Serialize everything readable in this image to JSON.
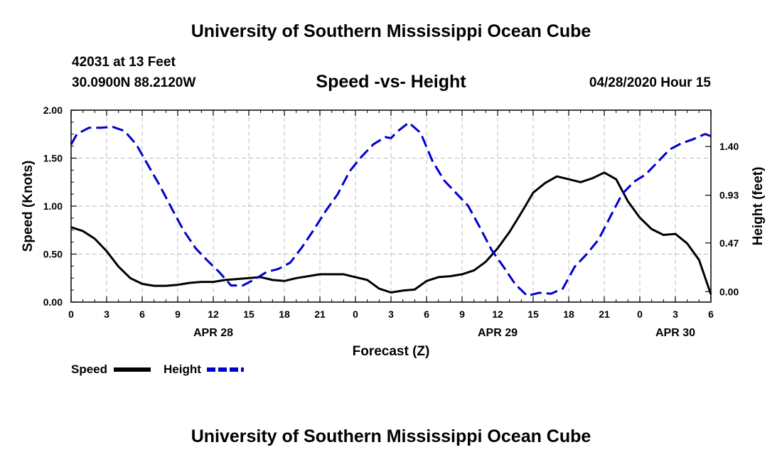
{
  "header": {
    "top_title": "University of Southern Mississippi Ocean Cube",
    "station_id": "42031 at 13 Feet",
    "coordinates": "30.0900N 88.2120W",
    "chart_title": "Speed -vs- Height",
    "date_label": "04/28/2020 Hour 15",
    "bottom_title": "University of Southern Mississippi Ocean Cube"
  },
  "chart_data": {
    "type": "line",
    "title": "Speed -vs- Height",
    "xlabel": "Forecast (Z)",
    "ylabel": "Speed (Knots)",
    "y2label": "Height (feet)",
    "x_range": [
      0,
      54
    ],
    "x_tick_values": [
      0,
      3,
      6,
      9,
      12,
      15,
      18,
      21,
      24,
      27,
      30,
      33,
      36,
      39,
      42,
      45,
      48,
      51,
      54
    ],
    "x_tick_labels": [
      "0",
      "3",
      "6",
      "9",
      "12",
      "15",
      "18",
      "21",
      "0",
      "3",
      "6",
      "9",
      "12",
      "15",
      "18",
      "21",
      "0",
      "3",
      "6"
    ],
    "date_labels": [
      {
        "x": 12,
        "label": "APR 28"
      },
      {
        "x": 36,
        "label": "APR 29"
      },
      {
        "x": 51,
        "label": "APR 30"
      }
    ],
    "ylim": [
      0,
      2.0
    ],
    "y_ticks": [
      "0.00",
      "0.50",
      "1.00",
      "1.50",
      "2.00"
    ],
    "y_tick_values": [
      0,
      0.5,
      1.0,
      1.5,
      2.0
    ],
    "y2lim": [
      -0.1,
      1.75
    ],
    "y2_ticks": [
      "0.00",
      "0.47",
      "0.93",
      "1.40"
    ],
    "y2_tick_values": [
      0,
      0.47,
      0.93,
      1.4
    ],
    "grid": true,
    "legend": [
      {
        "name": "Speed",
        "color": "#000000",
        "style": "solid"
      },
      {
        "name": "Height",
        "color": "#0000cc",
        "style": "dashed"
      }
    ],
    "series": [
      {
        "name": "Speed",
        "axis": "left",
        "color": "#000000",
        "x": [
          0,
          1,
          2,
          3,
          4,
          5,
          6,
          7,
          8,
          9,
          10,
          11,
          12,
          13,
          14,
          15,
          16,
          17,
          18,
          19,
          20,
          21,
          22,
          23,
          24,
          25,
          26,
          27,
          28,
          29,
          30,
          31,
          32,
          33,
          34,
          35,
          36,
          37,
          38,
          39,
          40,
          41,
          42,
          43,
          44,
          45,
          46,
          47,
          48,
          49,
          50,
          51,
          52,
          53,
          54
        ],
        "values": [
          0.78,
          0.74,
          0.66,
          0.53,
          0.37,
          0.25,
          0.19,
          0.17,
          0.17,
          0.18,
          0.2,
          0.21,
          0.21,
          0.23,
          0.24,
          0.25,
          0.26,
          0.23,
          0.22,
          0.25,
          0.27,
          0.29,
          0.29,
          0.29,
          0.26,
          0.23,
          0.14,
          0.1,
          0.12,
          0.13,
          0.22,
          0.26,
          0.27,
          0.29,
          0.33,
          0.42,
          0.56,
          0.73,
          0.93,
          1.14,
          1.24,
          1.31,
          1.28,
          1.25,
          1.29,
          1.35,
          1.28,
          1.05,
          0.88,
          0.76,
          0.7,
          0.71,
          0.61,
          0.44,
          0.08
        ]
      },
      {
        "name": "Height",
        "axis": "right",
        "color": "#0000cc",
        "x": [
          0,
          0.5,
          1.5,
          2.5,
          3.5,
          4.5,
          5.5,
          6.5,
          7.5,
          8.5,
          9.5,
          10.5,
          11.5,
          12.5,
          13.5,
          14.5,
          15.5,
          16.5,
          17.5,
          18.5,
          19.5,
          20.5,
          21.5,
          22.5,
          23.5,
          24.5,
          25.5,
          26.5,
          27,
          27.5,
          28.5,
          29.5,
          30.5,
          31.5,
          32.5,
          33.5,
          34.5,
          35.5,
          36.5,
          37.5,
          38.5,
          39.5,
          40.5,
          41.5,
          42.5,
          43.5,
          44.5,
          45.5,
          46.5,
          47.5,
          48.5,
          49.5,
          50.5,
          51.5,
          52.5,
          53.5,
          54
        ],
        "values": [
          1.42,
          1.52,
          1.58,
          1.58,
          1.59,
          1.55,
          1.42,
          1.22,
          1.02,
          0.8,
          0.59,
          0.42,
          0.3,
          0.19,
          0.06,
          0.06,
          0.12,
          0.19,
          0.22,
          0.28,
          0.43,
          0.6,
          0.78,
          0.94,
          1.16,
          1.3,
          1.42,
          1.49,
          1.48,
          1.54,
          1.63,
          1.53,
          1.26,
          1.07,
          0.95,
          0.83,
          0.62,
          0.4,
          0.24,
          0.07,
          -0.04,
          -0.01,
          -0.02,
          0.03,
          0.24,
          0.36,
          0.5,
          0.72,
          0.94,
          1.06,
          1.13,
          1.25,
          1.37,
          1.43,
          1.47,
          1.52,
          1.5
        ]
      }
    ]
  }
}
